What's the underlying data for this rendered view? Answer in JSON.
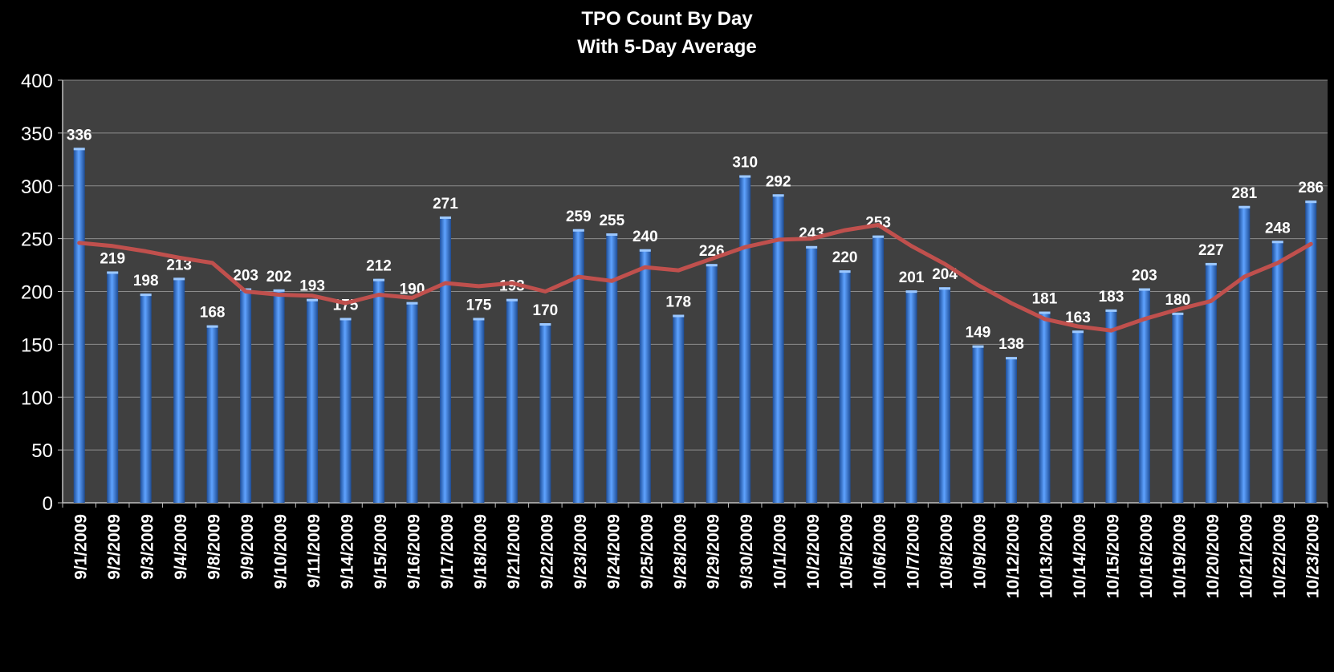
{
  "chart_data": {
    "type": "bar",
    "title_lines": [
      "TPO Count By Day",
      "With 5-Day Average"
    ],
    "categories": [
      "9/1/2009",
      "9/2/2009",
      "9/3/2009",
      "9/4/2009",
      "9/8/2009",
      "9/9/2009",
      "9/10/2009",
      "9/11/2009",
      "9/14/2009",
      "9/15/2009",
      "9/16/2009",
      "9/17/2009",
      "9/18/2009",
      "9/21/2009",
      "9/22/2009",
      "9/23/2009",
      "9/24/2009",
      "9/25/2009",
      "9/28/2009",
      "9/29/2009",
      "9/30/2009",
      "10/1/2009",
      "10/2/2009",
      "10/5/2009",
      "10/6/2009",
      "10/7/2009",
      "10/8/2009",
      "10/9/2009",
      "10/12/2009",
      "10/13/2009",
      "10/14/2009",
      "10/15/2009",
      "10/16/2009",
      "10/19/2009",
      "10/20/2009",
      "10/21/2009",
      "10/22/2009",
      "10/23/2009"
    ],
    "series": [
      {
        "type": "bar",
        "values": [
          336,
          219,
          198,
          213,
          168,
          203,
          202,
          193,
          175,
          212,
          190,
          271,
          175,
          193,
          170,
          259,
          255,
          240,
          178,
          226,
          310,
          292,
          243,
          220,
          253,
          201,
          204,
          149,
          138,
          181,
          163,
          183,
          203,
          180,
          227,
          281,
          248,
          286
        ],
        "color": "#3b7dd8"
      },
      {
        "type": "line",
        "values": [
          246,
          243,
          238,
          232,
          227,
          200,
          197,
          196,
          189,
          197,
          194,
          208,
          205,
          208,
          200,
          214,
          210,
          223,
          220,
          231,
          242,
          249,
          250,
          258,
          263,
          243,
          226,
          206,
          189,
          174,
          167,
          163,
          174,
          183,
          191,
          214,
          227,
          245
        ],
        "color": "#c0504d"
      }
    ],
    "ylim": [
      0,
      400
    ],
    "yticks": [
      0,
      50,
      100,
      150,
      200,
      250,
      300,
      350,
      400
    ],
    "grid": true,
    "plot_background": "#404040",
    "label_color": "#ffffff"
  }
}
